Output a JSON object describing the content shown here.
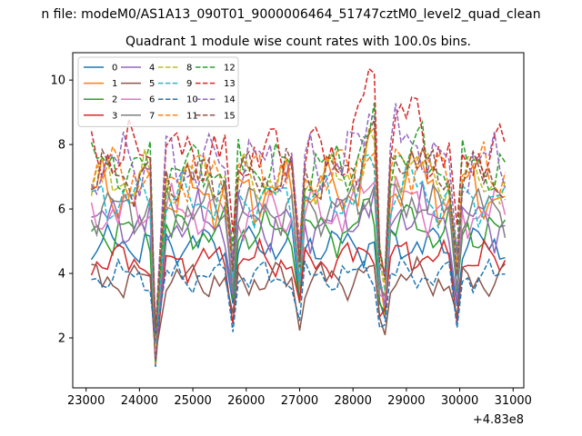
{
  "figure": {
    "suptitle": "n file: modeM0/AS1A13_090T01_9000006464_51747cztM0_level2_quad_clean",
    "title": "Quadrant 1 module wise count rates with 100.0s bins.",
    "offset_text": "+4.83e8"
  },
  "chart_data": {
    "type": "line",
    "title": "Quadrant 1 module wise count rates with 100.0s bins.",
    "xlabel": "",
    "ylabel": "",
    "xlim": [
      22750,
      31200
    ],
    "ylim": [
      0.45,
      10.85
    ],
    "x_offset": 483000000,
    "xticks": [
      23000,
      24000,
      25000,
      26000,
      27000,
      28000,
      29000,
      30000,
      31000
    ],
    "xtick_labels": [
      "23000",
      "24000",
      "25000",
      "26000",
      "27000",
      "28000",
      "29000",
      "30000",
      "31000"
    ],
    "yticks": [
      2,
      4,
      6,
      8,
      10
    ],
    "ytick_labels": [
      "2",
      "4",
      "6",
      "8",
      "10"
    ],
    "grid": false,
    "legend": {
      "placement": "top-left",
      "columns": 4
    },
    "segments": [
      [
        23100,
        24350
      ],
      [
        24500,
        25650
      ],
      [
        25750,
        26900
      ],
      [
        27000,
        28500
      ],
      [
        28600,
        29850
      ],
      [
        29950,
        30900
      ]
    ],
    "series": [
      {
        "name": "0",
        "color": "#1f77b4",
        "dash": "solid",
        "base": 4.9,
        "amp": 0.35,
        "peak": 0
      },
      {
        "name": "1",
        "color": "#ff7f0e",
        "dash": "solid",
        "base": 6.5,
        "amp": 0.6,
        "peak": 1.2
      },
      {
        "name": "2",
        "color": "#2ca02c",
        "dash": "solid",
        "base": 5.3,
        "amp": 0.4,
        "peak": 0.6
      },
      {
        "name": "3",
        "color": "#d62728",
        "dash": "solid",
        "base": 4.4,
        "amp": 0.35,
        "peak": 0.5
      },
      {
        "name": "4",
        "color": "#9467bd",
        "dash": "solid",
        "base": 5.6,
        "amp": 0.5,
        "peak": 0.8
      },
      {
        "name": "5",
        "color": "#8c564b",
        "dash": "solid",
        "base": 3.8,
        "amp": 0.35,
        "peak": 0.2
      },
      {
        "name": "6",
        "color": "#e377c2",
        "dash": "solid",
        "base": 5.9,
        "amp": 0.45,
        "peak": 0.9
      },
      {
        "name": "7",
        "color": "#7f7f7f",
        "dash": "solid",
        "base": 6.0,
        "amp": 0.45,
        "peak": 0.7
      },
      {
        "name": "8",
        "color": "#bcbd22",
        "dash": "dashed",
        "base": 6.9,
        "amp": 0.5,
        "peak": 1.0
      },
      {
        "name": "9",
        "color": "#17becf",
        "dash": "dashed",
        "base": 6.3,
        "amp": 0.45,
        "peak": 0.9
      },
      {
        "name": "10",
        "color": "#1f77b4",
        "dash": "dashed",
        "base": 3.9,
        "amp": 0.3,
        "peak": 0.2
      },
      {
        "name": "11",
        "color": "#ff7f0e",
        "dash": "dashed",
        "base": 7.1,
        "amp": 0.55,
        "peak": 1.1
      },
      {
        "name": "12",
        "color": "#2ca02c",
        "dash": "dashed",
        "base": 7.3,
        "amp": 0.5,
        "peak": 1.2
      },
      {
        "name": "13",
        "color": "#d62728",
        "dash": "dashed",
        "base": 7.7,
        "amp": 0.6,
        "peak": 2.4
      },
      {
        "name": "14",
        "color": "#9467bd",
        "dash": "dashed",
        "base": 7.4,
        "amp": 0.6,
        "peak": 1.8
      },
      {
        "name": "15",
        "color": "#8c564b",
        "dash": "dashed",
        "base": 7.0,
        "amp": 0.5,
        "peak": 1.5
      }
    ]
  }
}
